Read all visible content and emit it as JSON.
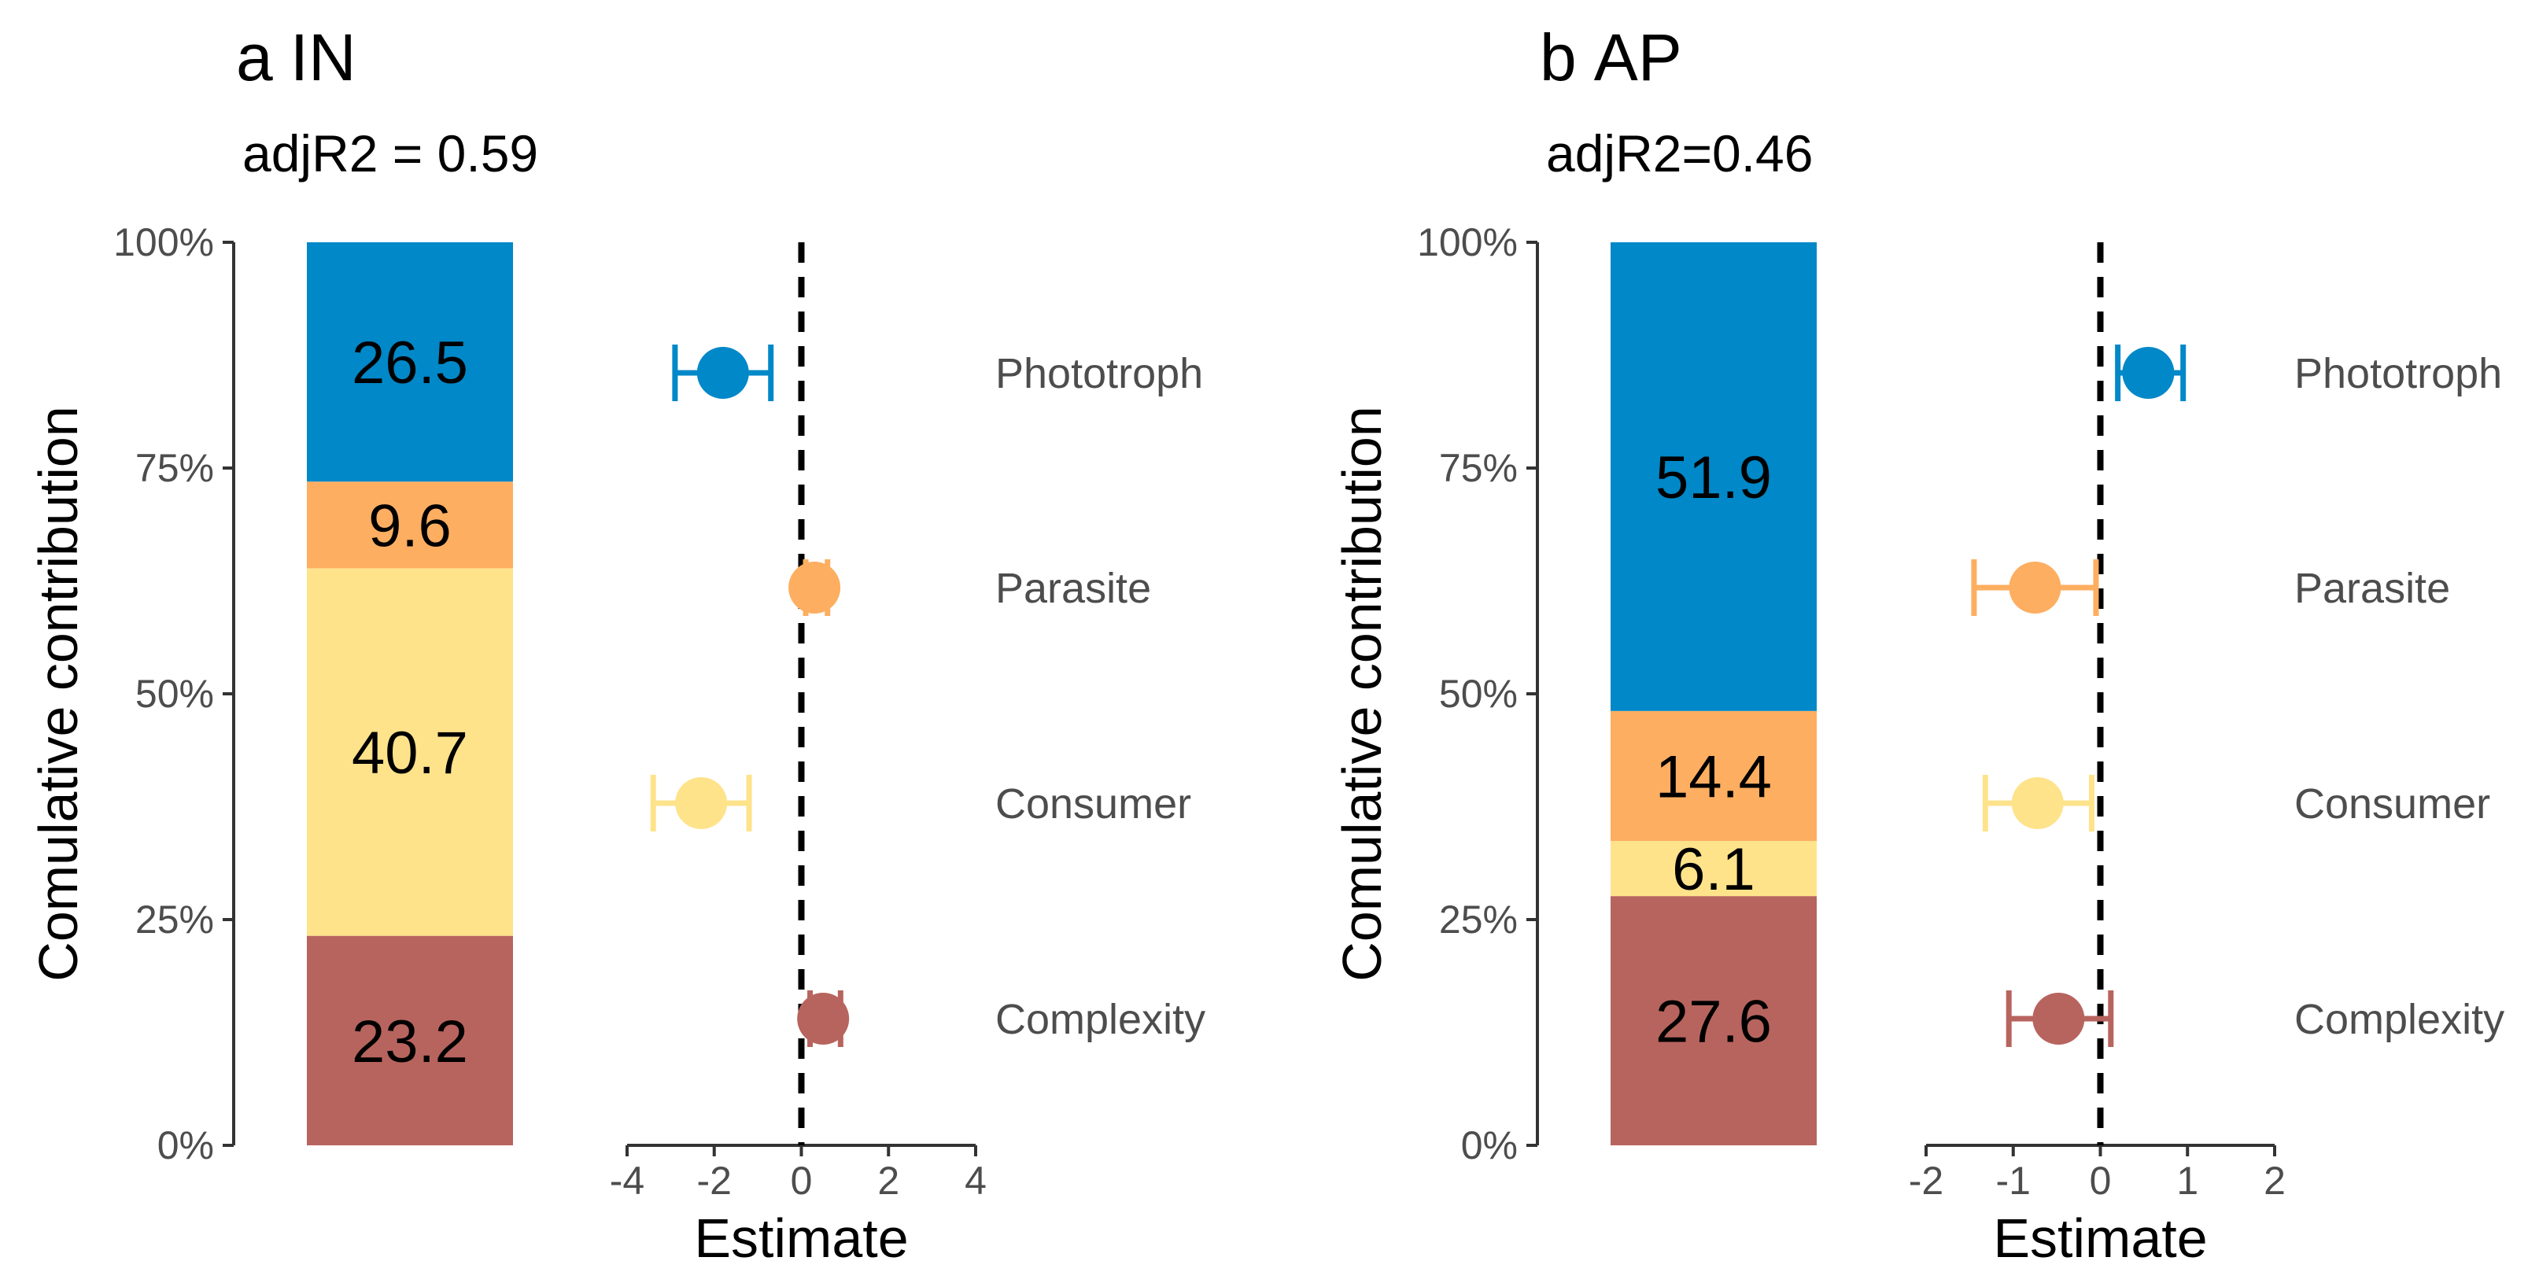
{
  "chart_data": [
    {
      "panel": "a",
      "title": "IN",
      "subtitle": "adjR2 = 0.59",
      "colors": {
        "Phototroph": "#0088c8",
        "Parasite": "#fdae61",
        "Consumer": "#fee38b",
        "Complexity": "#b8645e"
      },
      "contribution": {
        "type": "bar",
        "stacked": true,
        "ylabel": "Comulative contribution",
        "yticks": [
          "0%",
          "25%",
          "50%",
          "75%",
          "100%"
        ],
        "ylim": [
          0,
          100
        ],
        "segments": [
          {
            "name": "Complexity",
            "value": 23.2,
            "label": "23.2"
          },
          {
            "name": "Consumer",
            "value": 40.7,
            "label": "40.7"
          },
          {
            "name": "Parasite",
            "value": 9.6,
            "label": "9.6"
          },
          {
            "name": "Phototroph",
            "value": 26.5,
            "label": "26.5"
          }
        ]
      },
      "estimates": {
        "type": "scatter",
        "xlabel": "Estimate",
        "xlim": [
          -4,
          4
        ],
        "xticks": [
          "-4",
          "-2",
          "0",
          "2",
          "4"
        ],
        "points": [
          {
            "name": "Phototroph",
            "estimate": -1.8,
            "low": -2.9,
            "high": -0.7
          },
          {
            "name": "Parasite",
            "estimate": 0.3,
            "low": 0.1,
            "high": 0.6
          },
          {
            "name": "Consumer",
            "estimate": -2.3,
            "low": -3.4,
            "high": -1.2
          },
          {
            "name": "Complexity",
            "estimate": 0.5,
            "low": 0.2,
            "high": 0.9
          }
        ]
      }
    },
    {
      "panel": "b",
      "title": "AP",
      "subtitle": "adjR2=0.46",
      "colors": {
        "Phototroph": "#0088c8",
        "Parasite": "#fdae61",
        "Consumer": "#fee38b",
        "Complexity": "#b8645e"
      },
      "contribution": {
        "type": "bar",
        "stacked": true,
        "ylabel": "Comulative contribution",
        "yticks": [
          "0%",
          "25%",
          "50%",
          "75%",
          "100%"
        ],
        "ylim": [
          0,
          100
        ],
        "segments": [
          {
            "name": "Complexity",
            "value": 27.6,
            "label": "27.6"
          },
          {
            "name": "Consumer",
            "value": 6.1,
            "label": "6.1"
          },
          {
            "name": "Parasite",
            "value": 14.4,
            "label": "14.4"
          },
          {
            "name": "Phototroph",
            "value": 51.9,
            "label": "51.9"
          }
        ]
      },
      "estimates": {
        "type": "scatter",
        "xlabel": "Estimate",
        "xlim": [
          -2,
          2
        ],
        "xticks": [
          "-2",
          "-1",
          "0",
          "1",
          "2"
        ],
        "points": [
          {
            "name": "Phototroph",
            "estimate": 0.55,
            "low": 0.2,
            "high": 0.95
          },
          {
            "name": "Parasite",
            "estimate": -0.75,
            "low": -1.45,
            "high": -0.05
          },
          {
            "name": "Consumer",
            "estimate": -0.72,
            "low": -1.32,
            "high": -0.1
          },
          {
            "name": "Complexity",
            "estimate": -0.48,
            "low": -1.05,
            "high": 0.12
          }
        ]
      }
    }
  ]
}
